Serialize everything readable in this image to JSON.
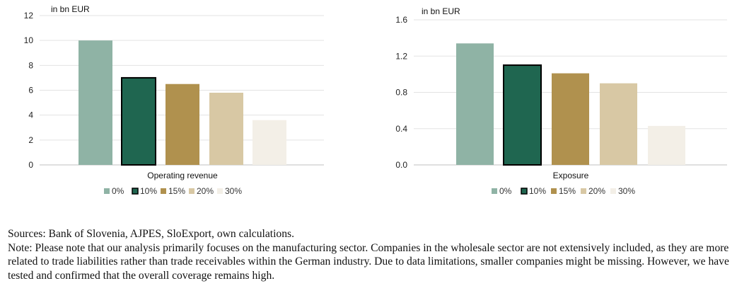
{
  "chart_data": [
    {
      "type": "bar",
      "unit_label": "in bn EUR",
      "categories": [
        "Operating revenue"
      ],
      "series": [
        {
          "name": "0%",
          "values": [
            10.0
          ],
          "color": "#8fb3a5"
        },
        {
          "name": "10%",
          "values": [
            7.0
          ],
          "color": "#1f6650"
        },
        {
          "name": "15%",
          "values": [
            6.5
          ],
          "color": "#b0914e"
        },
        {
          "name": "20%",
          "values": [
            5.8
          ],
          "color": "#d8c8a4"
        },
        {
          "name": "30%",
          "values": [
            3.6
          ],
          "color": "#f3efe7"
        }
      ],
      "highlighted_series": "10%",
      "ylim": [
        0,
        12
      ],
      "yticks": [
        "0",
        "2",
        "4",
        "6",
        "8",
        "10",
        "12"
      ],
      "grid": true,
      "legend": "bottom"
    },
    {
      "type": "bar",
      "unit_label": "in bn EUR",
      "categories": [
        "Exposure"
      ],
      "series": [
        {
          "name": "0%",
          "values": [
            1.34
          ],
          "color": "#8fb3a5"
        },
        {
          "name": "10%",
          "values": [
            1.1
          ],
          "color": "#1f6650"
        },
        {
          "name": "15%",
          "values": [
            1.01
          ],
          "color": "#b0914e"
        },
        {
          "name": "20%",
          "values": [
            0.9
          ],
          "color": "#d8c8a4"
        },
        {
          "name": "30%",
          "values": [
            0.43
          ],
          "color": "#f3efe7"
        }
      ],
      "highlighted_series": "10%",
      "ylim": [
        0,
        1.6
      ],
      "yticks": [
        "0.0",
        "0.4",
        "0.8",
        "1.2",
        "1.6"
      ],
      "grid": true,
      "legend": "bottom"
    }
  ],
  "footer": {
    "sources": "Sources: Bank of Slovenia, AJPES, SloExport, own calculations.",
    "note": "Note: Please note that our analysis primarily focuses on the manufacturing sector. Companies in the wholesale sector are not extensively included, as they are more related to trade liabilities rather than trade receivables within the German industry. Due to data limitations, smaller companies might be missing. However, we have tested and confirmed that the overall coverage remains high."
  }
}
